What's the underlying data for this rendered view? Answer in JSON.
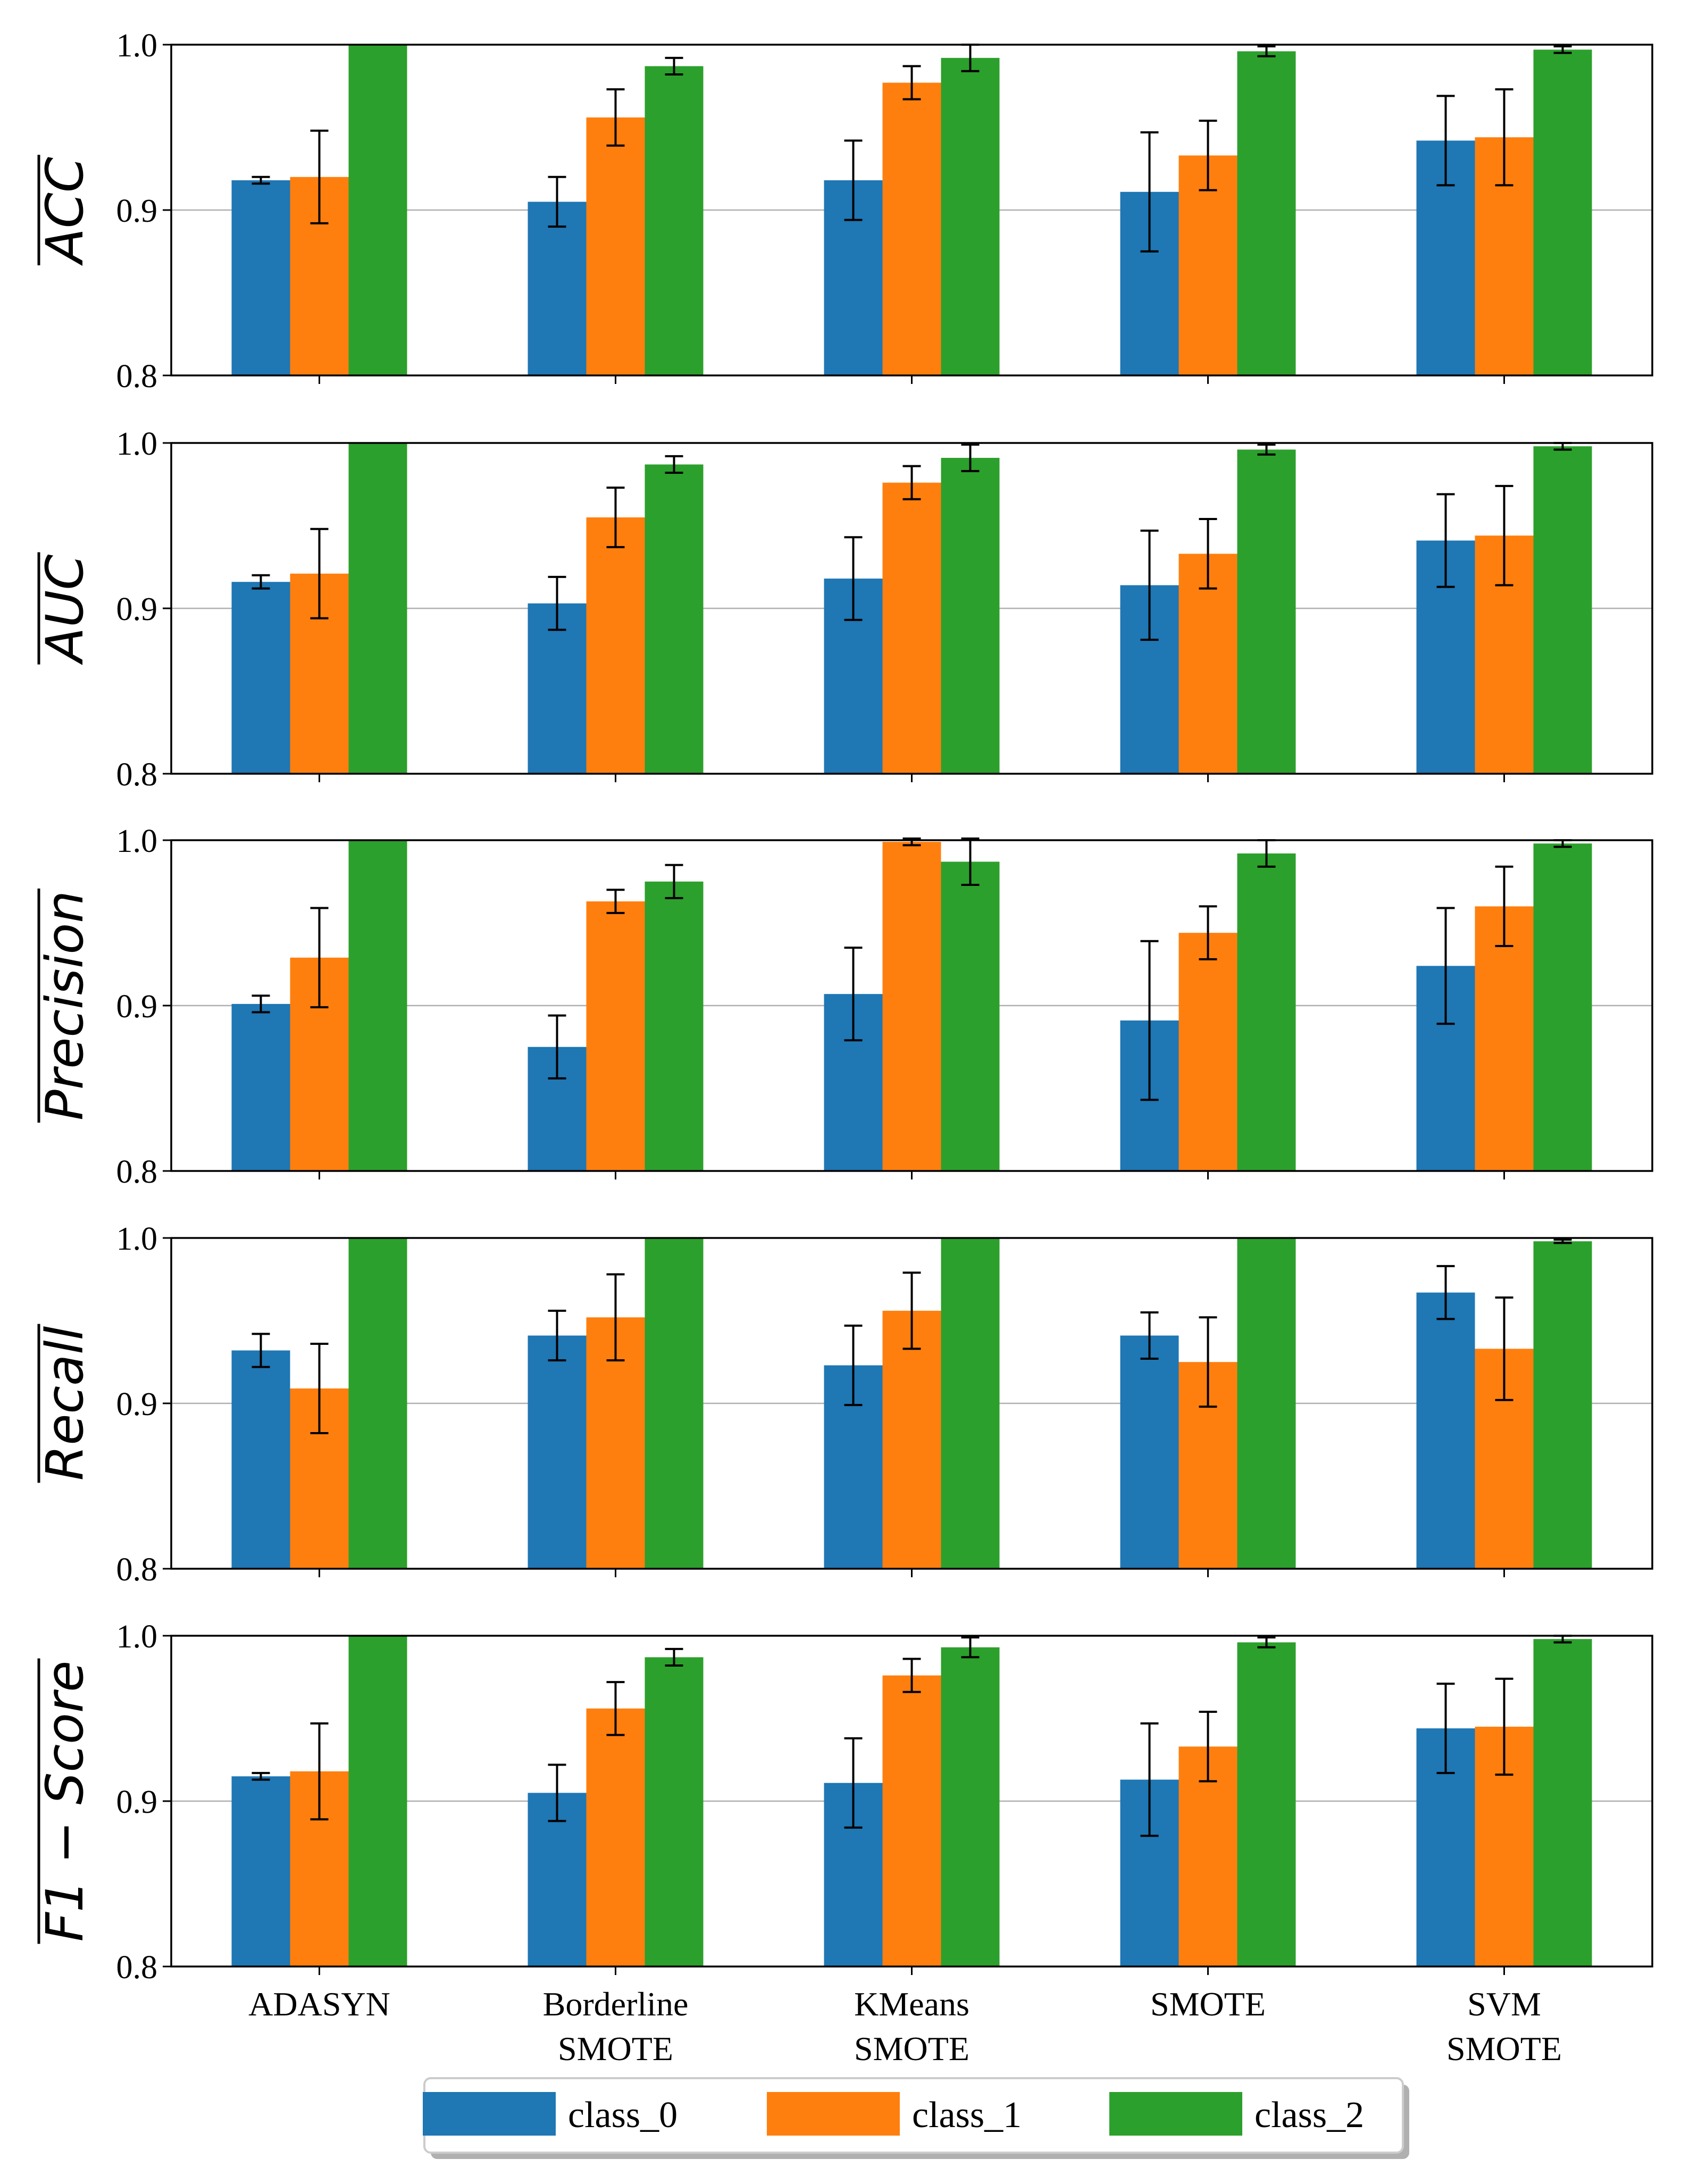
{
  "chart_data": {
    "type": "bar",
    "categories": [
      "ADASYN",
      "Borderline\nSMOTE",
      "KMeans\nSMOTE",
      "SMOTE",
      "SVM\nSMOTE"
    ],
    "category_labels": [
      [
        "ADASYN"
      ],
      [
        "Borderline",
        "SMOTE"
      ],
      [
        "KMeans",
        "SMOTE"
      ],
      [
        "SMOTE"
      ],
      [
        "SVM",
        "SMOTE"
      ]
    ],
    "series_names": [
      "class_0",
      "class_1",
      "class_2"
    ],
    "colors": [
      "#1f77b4",
      "#ff7f0e",
      "#2ca02c"
    ],
    "legend_labels": [
      "class_0",
      "class_1",
      "class_2"
    ],
    "ylim": [
      0.8,
      1.0
    ],
    "yticks": [
      "0.8",
      "0.9",
      "1.0"
    ],
    "xlabel": "",
    "grid": true,
    "legend_position": "bottom-center",
    "subplots": [
      {
        "ylabel": "ACC",
        "series": [
          {
            "name": "class_0",
            "values": [
              0.918,
              0.905,
              0.918,
              0.911,
              0.942
            ],
            "errors": [
              0.002,
              0.015,
              0.024,
              0.036,
              0.027
            ]
          },
          {
            "name": "class_1",
            "values": [
              0.92,
              0.956,
              0.977,
              0.933,
              0.944
            ],
            "errors": [
              0.028,
              0.017,
              0.01,
              0.021,
              0.029
            ]
          },
          {
            "name": "class_2",
            "values": [
              1.0,
              0.987,
              0.992,
              0.996,
              0.997
            ],
            "errors": [
              0.0,
              0.005,
              0.008,
              0.003,
              0.002
            ]
          }
        ]
      },
      {
        "ylabel": "AUC",
        "series": [
          {
            "name": "class_0",
            "values": [
              0.916,
              0.903,
              0.918,
              0.914,
              0.941
            ],
            "errors": [
              0.004,
              0.016,
              0.025,
              0.033,
              0.028
            ]
          },
          {
            "name": "class_1",
            "values": [
              0.921,
              0.955,
              0.976,
              0.933,
              0.944
            ],
            "errors": [
              0.027,
              0.018,
              0.01,
              0.021,
              0.03
            ]
          },
          {
            "name": "class_2",
            "values": [
              1.0,
              0.987,
              0.991,
              0.996,
              0.998
            ],
            "errors": [
              0.0,
              0.005,
              0.008,
              0.003,
              0.002
            ]
          }
        ]
      },
      {
        "ylabel": "Precision",
        "series": [
          {
            "name": "class_0",
            "values": [
              0.901,
              0.875,
              0.907,
              0.891,
              0.924
            ],
            "errors": [
              0.005,
              0.019,
              0.028,
              0.048,
              0.035
            ]
          },
          {
            "name": "class_1",
            "values": [
              0.929,
              0.963,
              0.999,
              0.944,
              0.96
            ],
            "errors": [
              0.03,
              0.007,
              0.002,
              0.016,
              0.024
            ]
          },
          {
            "name": "class_2",
            "values": [
              1.0,
              0.975,
              0.987,
              0.992,
              0.998
            ],
            "errors": [
              0.0,
              0.01,
              0.014,
              0.008,
              0.002
            ]
          }
        ]
      },
      {
        "ylabel": "Recall",
        "series": [
          {
            "name": "class_0",
            "values": [
              0.932,
              0.941,
              0.923,
              0.941,
              0.967
            ],
            "errors": [
              0.01,
              0.015,
              0.024,
              0.014,
              0.016
            ]
          },
          {
            "name": "class_1",
            "values": [
              0.909,
              0.952,
              0.956,
              0.925,
              0.933
            ],
            "errors": [
              0.027,
              0.026,
              0.023,
              0.027,
              0.031
            ]
          },
          {
            "name": "class_2",
            "values": [
              1.0,
              1.0,
              1.0,
              1.0,
              0.998
            ],
            "errors": [
              0.0,
              0.0,
              0.0,
              0.0,
              0.001
            ]
          }
        ]
      },
      {
        "ylabel": "F1 − Score",
        "series": [
          {
            "name": "class_0",
            "values": [
              0.915,
              0.905,
              0.911,
              0.913,
              0.944
            ],
            "errors": [
              0.002,
              0.017,
              0.027,
              0.034,
              0.027
            ]
          },
          {
            "name": "class_1",
            "values": [
              0.918,
              0.956,
              0.976,
              0.933,
              0.945
            ],
            "errors": [
              0.029,
              0.016,
              0.01,
              0.021,
              0.029
            ]
          },
          {
            "name": "class_2",
            "values": [
              1.0,
              0.987,
              0.993,
              0.996,
              0.998
            ],
            "errors": [
              0.0,
              0.005,
              0.006,
              0.003,
              0.002
            ]
          }
        ]
      }
    ]
  }
}
